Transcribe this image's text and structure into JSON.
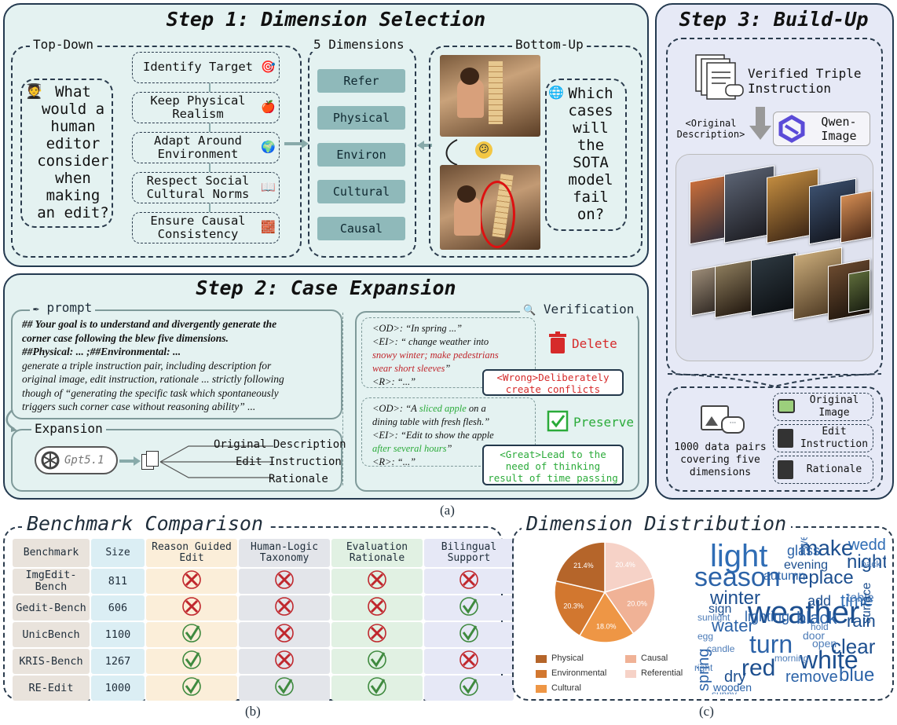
{
  "step1": {
    "title": "Step 1: Dimension Selection",
    "topdown": {
      "label": "Top-Down",
      "question": "What would a human editor consider when making an edit?",
      "items": [
        "Identify Target",
        "Keep Physical Realism",
        "Adapt Around Environment",
        "Respect Social Cultural Norms",
        "Ensure Causal Consistency"
      ]
    },
    "dimensions": {
      "label": "5 Dimensions",
      "items": [
        "Refer",
        "Physical",
        "Environ",
        "Cultural",
        "Causal"
      ]
    },
    "bottomup": {
      "label": "Bottom-Up",
      "question": "Which cases will the SOTA model fail on?"
    }
  },
  "step2": {
    "title": "Step 2: Case Expansion",
    "prompt_label": "prompt",
    "prompt_lines": [
      "## Your goal is to understand and divergently generate the",
      "corner case following the blew five dimensions.",
      "##Physical: ... ;##Environmental: ...",
      " generate a triple instruction pair, including description for",
      "original image, edit instruction, rationale ... strictly following",
      "though of “generating the specific task which spontaneously",
      "triggers such corner case without reasoning ability” ..."
    ],
    "expansion_label": "Expansion",
    "model": "Gpt5.1",
    "outputs": [
      "Original Description",
      "Edit Instruction",
      "Rationale"
    ],
    "verification_label": "Verification",
    "bad_case": {
      "od_tag": "<OD>:",
      "od_text": " “In spring ...”",
      "ei_tag": "<EI>:",
      "ei_text": " “ change weather into",
      "ei_red_1": "snowy winter; make pedestrians",
      "ei_red_2": "wear short sleeves",
      "ei_end": "”",
      "r_tag": "<R>:",
      "r_text": " “...”",
      "action": "Delete",
      "note_tag": "<Wrong>",
      "note_1": "Deliberately",
      "note_2": "create conflicts"
    },
    "good_case": {
      "od_tag": "<OD>:",
      "od_pre": " “A ",
      "od_green": "sliced apple",
      "od_post": " on a",
      "od_line2": "dining table with fresh flesh.”",
      "ei_tag": "<EI>:",
      "ei_text": " “Edit to show the apple",
      "ei_green": "after several hours",
      "ei_end": "”",
      "r_tag": "<R>:",
      "r_text": " “...”",
      "action": "Preserve",
      "note_tag": "<Great>",
      "note_1": "Lead to the",
      "note_2": "need of thinking",
      "note_3": "result of time passing"
    }
  },
  "step3": {
    "title": "Step 3: Build-Up",
    "verified": "Verified Triple Instruction",
    "orig_desc": "<Original Description>",
    "model": "Qwen-Image",
    "summary": "1000 data pairs covering five dimensions",
    "items": [
      "Original Image",
      "Edit Instruction",
      "Rationale"
    ]
  },
  "caption_a": "(a)",
  "caption_b": "(b)",
  "caption_c": "(c)",
  "comparison": {
    "title": "Benchmark Comparison",
    "headers": [
      "Benchmark",
      "Size",
      "Reason Guided Edit",
      "Human-Logic Taxonomy",
      "Evaluation Rationale",
      "Bilingual Support"
    ],
    "rows": [
      {
        "name": "ImgEdit-Bench",
        "size": "811",
        "marks": [
          "no",
          "no",
          "no",
          "no"
        ]
      },
      {
        "name": "Gedit-Bench",
        "size": "606",
        "marks": [
          "no",
          "no",
          "no",
          "yes"
        ]
      },
      {
        "name": "UnicBench",
        "size": "1100",
        "marks": [
          "yes",
          "no",
          "no",
          "yes"
        ]
      },
      {
        "name": "KRIS-Bench",
        "size": "1267",
        "marks": [
          "yes",
          "no",
          "yes",
          "no"
        ]
      },
      {
        "name": "RE-Edit",
        "size": "1000",
        "marks": [
          "yes",
          "yes",
          "yes",
          "yes"
        ]
      }
    ],
    "colors": {
      "bench": "#e9e3dc",
      "size": "#dbeef4",
      "reason": "#fbeed9",
      "logic": "#e3e5ea",
      "rationale": "#e1f1e3",
      "bilingual": "#e6e8f6",
      "yes": "#3f8a3f",
      "no": "#c0272d"
    }
  },
  "distribution": {
    "title": "Dimension Distribution",
    "chart_data": {
      "type": "pie",
      "series": [
        {
          "name": "Physical",
          "value": 21.4,
          "label": "21.4%",
          "color": "#b5652a"
        },
        {
          "name": "Environmental",
          "value": 20.3,
          "label": "20.3%",
          "color": "#d2772f"
        },
        {
          "name": "Cultural",
          "value": 18.0,
          "label": "18.0%",
          "color": "#ee9645"
        },
        {
          "name": "Causal",
          "value": 20.0,
          "label": "20.0%",
          "color": "#f0b296"
        },
        {
          "name": "Referential",
          "value": 20.4,
          "label": "20.4%",
          "color": "#f6d2c7"
        }
      ],
      "legend_placement": "bottom"
    },
    "wordcloud": [
      "light",
      "weather",
      "season",
      "night",
      "make",
      "turn",
      "replace",
      "winter",
      "white",
      "wedding",
      "rain",
      "clear",
      "black",
      "red",
      "time",
      "water",
      "remove",
      "blue",
      "evening",
      "glass",
      "autumn",
      "add",
      "lighting",
      "door",
      "table",
      "sign",
      "open",
      "spring",
      "wear",
      "surface",
      "wooden",
      "back",
      "dry",
      "right",
      "morning",
      "candle",
      "hold",
      "sunny",
      "egg",
      "sunlight"
    ]
  }
}
